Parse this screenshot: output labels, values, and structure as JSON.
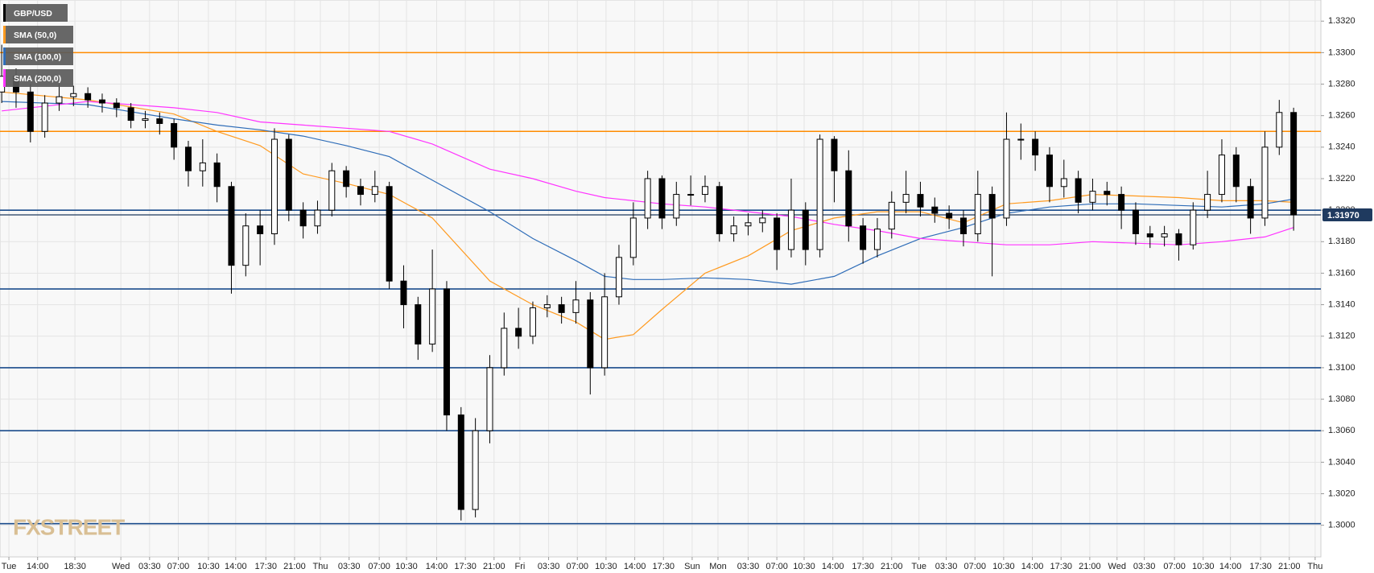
{
  "chart_data": {
    "type": "candlestick",
    "name": "GBP/USD",
    "xlim": [
      -0.12,
      91.9
    ],
    "ylim": [
      1.29799,
      1.33334
    ],
    "grid": true,
    "up_color": "#ffffff",
    "down_color": "#000000",
    "open": [
      1.3275,
      1.3285,
      1.3275,
      1.325,
      1.3268,
      1.3272,
      1.3274,
      1.327,
      1.3268,
      1.3265,
      1.3257,
      1.3258,
      1.3255,
      1.324,
      1.3225,
      1.323,
      1.3215,
      1.3165,
      1.319,
      1.3185,
      1.3245,
      1.32,
      1.319,
      1.32,
      1.3225,
      1.3215,
      1.321,
      1.3215,
      1.3155,
      1.314,
      1.3115,
      1.315,
      1.307,
      1.301,
      1.306,
      1.31,
      1.3125,
      1.312,
      1.3138,
      1.314,
      1.3135,
      1.3143,
      1.31,
      1.3145,
      1.317,
      1.3195,
      1.322,
      1.3195,
      1.321,
      1.321,
      1.3215,
      1.3185,
      1.319,
      1.3192,
      1.3195,
      1.3175,
      1.32,
      1.3175,
      1.3245,
      1.3225,
      1.319,
      1.3175,
      1.3188,
      1.3205,
      1.321,
      1.3202,
      1.3198,
      1.3195,
      1.3185,
      1.321,
      1.3195,
      1.3245,
      1.3245,
      1.3235,
      1.3215,
      1.322,
      1.3205,
      1.3212,
      1.321,
      1.32,
      1.3185,
      1.3183,
      1.3185,
      1.3178,
      1.32,
      1.321,
      1.3235,
      1.3215,
      1.3195,
      1.324,
      1.3262
    ],
    "high": [
      1.3305,
      1.329,
      1.328,
      1.3273,
      1.328,
      1.3279,
      1.3278,
      1.3274,
      1.3271,
      1.3268,
      1.3263,
      1.3262,
      1.3258,
      1.3244,
      1.3245,
      1.3236,
      1.3218,
      1.3198,
      1.32,
      1.3252,
      1.3248,
      1.3205,
      1.3206,
      1.323,
      1.3228,
      1.322,
      1.3225,
      1.3218,
      1.3165,
      1.3145,
      1.3175,
      1.3155,
      1.3075,
      1.3068,
      1.3108,
      1.3135,
      1.3138,
      1.3142,
      1.3146,
      1.3145,
      1.3155,
      1.3148,
      1.316,
      1.3178,
      1.3205,
      1.3225,
      1.3222,
      1.3218,
      1.3222,
      1.3222,
      1.3218,
      1.3196,
      1.3198,
      1.32,
      1.3198,
      1.322,
      1.3205,
      1.3248,
      1.3247,
      1.3238,
      1.3195,
      1.3195,
      1.3212,
      1.3225,
      1.3218,
      1.3208,
      1.3203,
      1.32,
      1.3225,
      1.3215,
      1.3262,
      1.3255,
      1.325,
      1.324,
      1.3232,
      1.3225,
      1.322,
      1.3218,
      1.3215,
      1.3205,
      1.319,
      1.319,
      1.3188,
      1.3205,
      1.3225,
      1.3245,
      1.324,
      1.322,
      1.325,
      1.327,
      1.3265
    ],
    "low": [
      1.3268,
      1.3265,
      1.3243,
      1.3246,
      1.3263,
      1.3266,
      1.3265,
      1.3262,
      1.3259,
      1.3252,
      1.3252,
      1.3248,
      1.3232,
      1.3215,
      1.3215,
      1.3205,
      1.3147,
      1.3158,
      1.3165,
      1.3178,
      1.3193,
      1.3182,
      1.3185,
      1.3196,
      1.3208,
      1.3203,
      1.3205,
      1.315,
      1.3125,
      1.3105,
      1.311,
      1.306,
      1.3003,
      1.3005,
      1.3052,
      1.3095,
      1.3112,
      1.3115,
      1.3132,
      1.3128,
      1.3128,
      1.3083,
      1.3095,
      1.314,
      1.3165,
      1.3188,
      1.3188,
      1.319,
      1.3203,
      1.3205,
      1.318,
      1.318,
      1.3184,
      1.3186,
      1.3162,
      1.317,
      1.3165,
      1.317,
      1.3205,
      1.318,
      1.3166,
      1.317,
      1.3182,
      1.3198,
      1.3196,
      1.3192,
      1.3188,
      1.3177,
      1.318,
      1.3158,
      1.319,
      1.3232,
      1.3225,
      1.3205,
      1.3208,
      1.3198,
      1.32,
      1.3203,
      1.3188,
      1.3178,
      1.3176,
      1.3177,
      1.3168,
      1.3175,
      1.3195,
      1.3205,
      1.3205,
      1.3185,
      1.319,
      1.3235,
      1.3187
    ],
    "close": [
      1.3285,
      1.3275,
      1.325,
      1.3268,
      1.3272,
      1.3274,
      1.327,
      1.3268,
      1.3265,
      1.3257,
      1.3258,
      1.3255,
      1.324,
      1.3225,
      1.323,
      1.3215,
      1.3165,
      1.319,
      1.3185,
      1.3245,
      1.32,
      1.319,
      1.32,
      1.3225,
      1.3215,
      1.321,
      1.3215,
      1.3155,
      1.314,
      1.3115,
      1.315,
      1.307,
      1.301,
      1.306,
      1.31,
      1.3125,
      1.312,
      1.3138,
      1.314,
      1.3135,
      1.3143,
      1.31,
      1.3145,
      1.317,
      1.3195,
      1.322,
      1.3195,
      1.321,
      1.321,
      1.3215,
      1.3185,
      1.319,
      1.3192,
      1.3195,
      1.3175,
      1.32,
      1.3175,
      1.3245,
      1.3225,
      1.319,
      1.3175,
      1.3188,
      1.3205,
      1.321,
      1.3202,
      1.3198,
      1.3195,
      1.3185,
      1.321,
      1.3195,
      1.3245,
      1.3245,
      1.3235,
      1.3215,
      1.322,
      1.3205,
      1.3212,
      1.321,
      1.32,
      1.3185,
      1.3183,
      1.3185,
      1.3178,
      1.32,
      1.321,
      1.3235,
      1.3215,
      1.3195,
      1.324,
      1.3262,
      1.3197
    ],
    "overlays": [
      {
        "name": "SMA (50,0)",
        "color": "#ff9a1f",
        "x": [
          0,
          6,
          12,
          15,
          18,
          21,
          24,
          27,
          30,
          34,
          37,
          40,
          42,
          44,
          46,
          49,
          52,
          55,
          58,
          61,
          64,
          67,
          70,
          73,
          76,
          79,
          82,
          85,
          88,
          90
        ],
        "values": [
          1.3275,
          1.327,
          1.3261,
          1.325,
          1.3241,
          1.3223,
          1.3217,
          1.321,
          1.3195,
          1.3155,
          1.314,
          1.3129,
          1.3118,
          1.3121,
          1.3137,
          1.316,
          1.3171,
          1.3187,
          1.3195,
          1.3199,
          1.3199,
          1.3192,
          1.3204,
          1.3206,
          1.321,
          1.3209,
          1.3208,
          1.3206,
          1.3206,
          1.3205
        ]
      },
      {
        "name": "SMA (100,0)",
        "color": "#2f6db8",
        "x": [
          0,
          6,
          12,
          15,
          18,
          21,
          24,
          27,
          30,
          34,
          37,
          40,
          42,
          44,
          46,
          49,
          52,
          55,
          58,
          61,
          64,
          67,
          70,
          73,
          76,
          79,
          82,
          85,
          88,
          90
        ],
        "values": [
          1.3269,
          1.3267,
          1.3258,
          1.3254,
          1.3251,
          1.3247,
          1.3241,
          1.3234,
          1.3219,
          1.3199,
          1.3182,
          1.3168,
          1.3158,
          1.3156,
          1.3156,
          1.3157,
          1.3156,
          1.3153,
          1.3158,
          1.3171,
          1.3182,
          1.3189,
          1.3198,
          1.3202,
          1.3204,
          1.3204,
          1.3203,
          1.3202,
          1.3204,
          1.3207
        ]
      },
      {
        "name": "SMA (200,0)",
        "color": "#ff33ff",
        "x": [
          0,
          6,
          12,
          15,
          18,
          21,
          24,
          27,
          30,
          34,
          37,
          40,
          42,
          44,
          46,
          49,
          52,
          55,
          58,
          61,
          64,
          67,
          70,
          73,
          76,
          79,
          82,
          85,
          88,
          90
        ],
        "values": [
          1.3263,
          1.3269,
          1.3265,
          1.3262,
          1.3256,
          1.3254,
          1.3252,
          1.325,
          1.3242,
          1.3226,
          1.322,
          1.3212,
          1.3208,
          1.3206,
          1.3204,
          1.3202,
          1.3199,
          1.3196,
          1.3191,
          1.3187,
          1.3182,
          1.318,
          1.3178,
          1.3178,
          1.318,
          1.3179,
          1.3178,
          1.318,
          1.3183,
          1.3189
        ]
      }
    ],
    "levels": [
      {
        "value": 1.33,
        "color": "#ff8c00"
      },
      {
        "value": 1.325,
        "color": "#ff8c00"
      },
      {
        "value": 1.32,
        "color": "#1a4c8c"
      },
      {
        "value": 1.315,
        "color": "#1a4c8c"
      },
      {
        "value": 1.31,
        "color": "#1a4c8c"
      },
      {
        "value": 1.306,
        "color": "#1a4c8c"
      },
      {
        "value": 1.3001,
        "color": "#1a4c8c"
      }
    ],
    "last_price": {
      "value": 1.3197,
      "label": "1.31970",
      "color": "#1f3a5f"
    },
    "watermark": "FXSTREET",
    "yticks": [
      {
        "value": 1.3,
        "label": "1.3000"
      },
      {
        "value": 1.302,
        "label": "1.3020"
      },
      {
        "value": 1.304,
        "label": "1.3040"
      },
      {
        "value": 1.306,
        "label": "1.3060"
      },
      {
        "value": 1.308,
        "label": "1.3080"
      },
      {
        "value": 1.31,
        "label": "1.3100"
      },
      {
        "value": 1.312,
        "label": "1.3120"
      },
      {
        "value": 1.314,
        "label": "1.3140"
      },
      {
        "value": 1.316,
        "label": "1.3160"
      },
      {
        "value": 1.318,
        "label": "1.3180"
      },
      {
        "value": 1.32,
        "label": "1.3200"
      },
      {
        "value": 1.322,
        "label": "1.3220"
      },
      {
        "value": 1.324,
        "label": "1.3240"
      },
      {
        "value": 1.326,
        "label": "1.3260"
      },
      {
        "value": 1.328,
        "label": "1.3280"
      },
      {
        "value": 1.33,
        "label": "1.3300"
      },
      {
        "value": 1.332,
        "label": "1.3320"
      }
    ],
    "xticks": [
      {
        "value": 0.5,
        "label": "Tue"
      },
      {
        "value": 2.5,
        "label": "14:00"
      },
      {
        "value": 5.1,
        "label": "18:30"
      },
      {
        "value": 8.3,
        "label": "Wed"
      },
      {
        "value": 10.3,
        "label": "03:30"
      },
      {
        "value": 12.3,
        "label": "07:00"
      },
      {
        "value": 14.4,
        "label": "10:30"
      },
      {
        "value": 16.3,
        "label": "14:00"
      },
      {
        "value": 18.4,
        "label": "17:30"
      },
      {
        "value": 20.4,
        "label": "21:00"
      },
      {
        "value": 22.2,
        "label": "Thu"
      },
      {
        "value": 24.2,
        "label": "03:30"
      },
      {
        "value": 26.3,
        "label": "07:00"
      },
      {
        "value": 28.2,
        "label": "10:30"
      },
      {
        "value": 30.3,
        "label": "14:00"
      },
      {
        "value": 32.3,
        "label": "17:30"
      },
      {
        "value": 34.3,
        "label": "21:00"
      },
      {
        "value": 36.1,
        "label": "Fri"
      },
      {
        "value": 38.1,
        "label": "03:30"
      },
      {
        "value": 40.1,
        "label": "07:00"
      },
      {
        "value": 42.1,
        "label": "10:30"
      },
      {
        "value": 44.1,
        "label": "14:00"
      },
      {
        "value": 46.1,
        "label": "17:30"
      },
      {
        "value": 48.1,
        "label": "Sun"
      },
      {
        "value": 49.9,
        "label": "Mon"
      },
      {
        "value": 52.0,
        "label": "03:30"
      },
      {
        "value": 54.0,
        "label": "07:00"
      },
      {
        "value": 55.9,
        "label": "10:30"
      },
      {
        "value": 57.9,
        "label": "14:00"
      },
      {
        "value": 60.0,
        "label": "17:30"
      },
      {
        "value": 62.0,
        "label": "21:00"
      },
      {
        "value": 63.9,
        "label": "Tue"
      },
      {
        "value": 65.8,
        "label": "03:30"
      },
      {
        "value": 67.8,
        "label": "07:00"
      },
      {
        "value": 69.8,
        "label": "10:30"
      },
      {
        "value": 71.8,
        "label": "14:00"
      },
      {
        "value": 73.8,
        "label": "17:30"
      },
      {
        "value": 75.8,
        "label": "21:00"
      },
      {
        "value": 77.7,
        "label": "Wed"
      },
      {
        "value": 79.6,
        "label": "03:30"
      },
      {
        "value": 81.7,
        "label": "07:00"
      },
      {
        "value": 83.7,
        "label": "10:30"
      },
      {
        "value": 85.6,
        "label": "14:00"
      },
      {
        "value": 87.7,
        "label": "17:30"
      },
      {
        "value": 89.7,
        "label": "21:00"
      },
      {
        "value": 91.5,
        "label": "Thu"
      }
    ]
  }
}
